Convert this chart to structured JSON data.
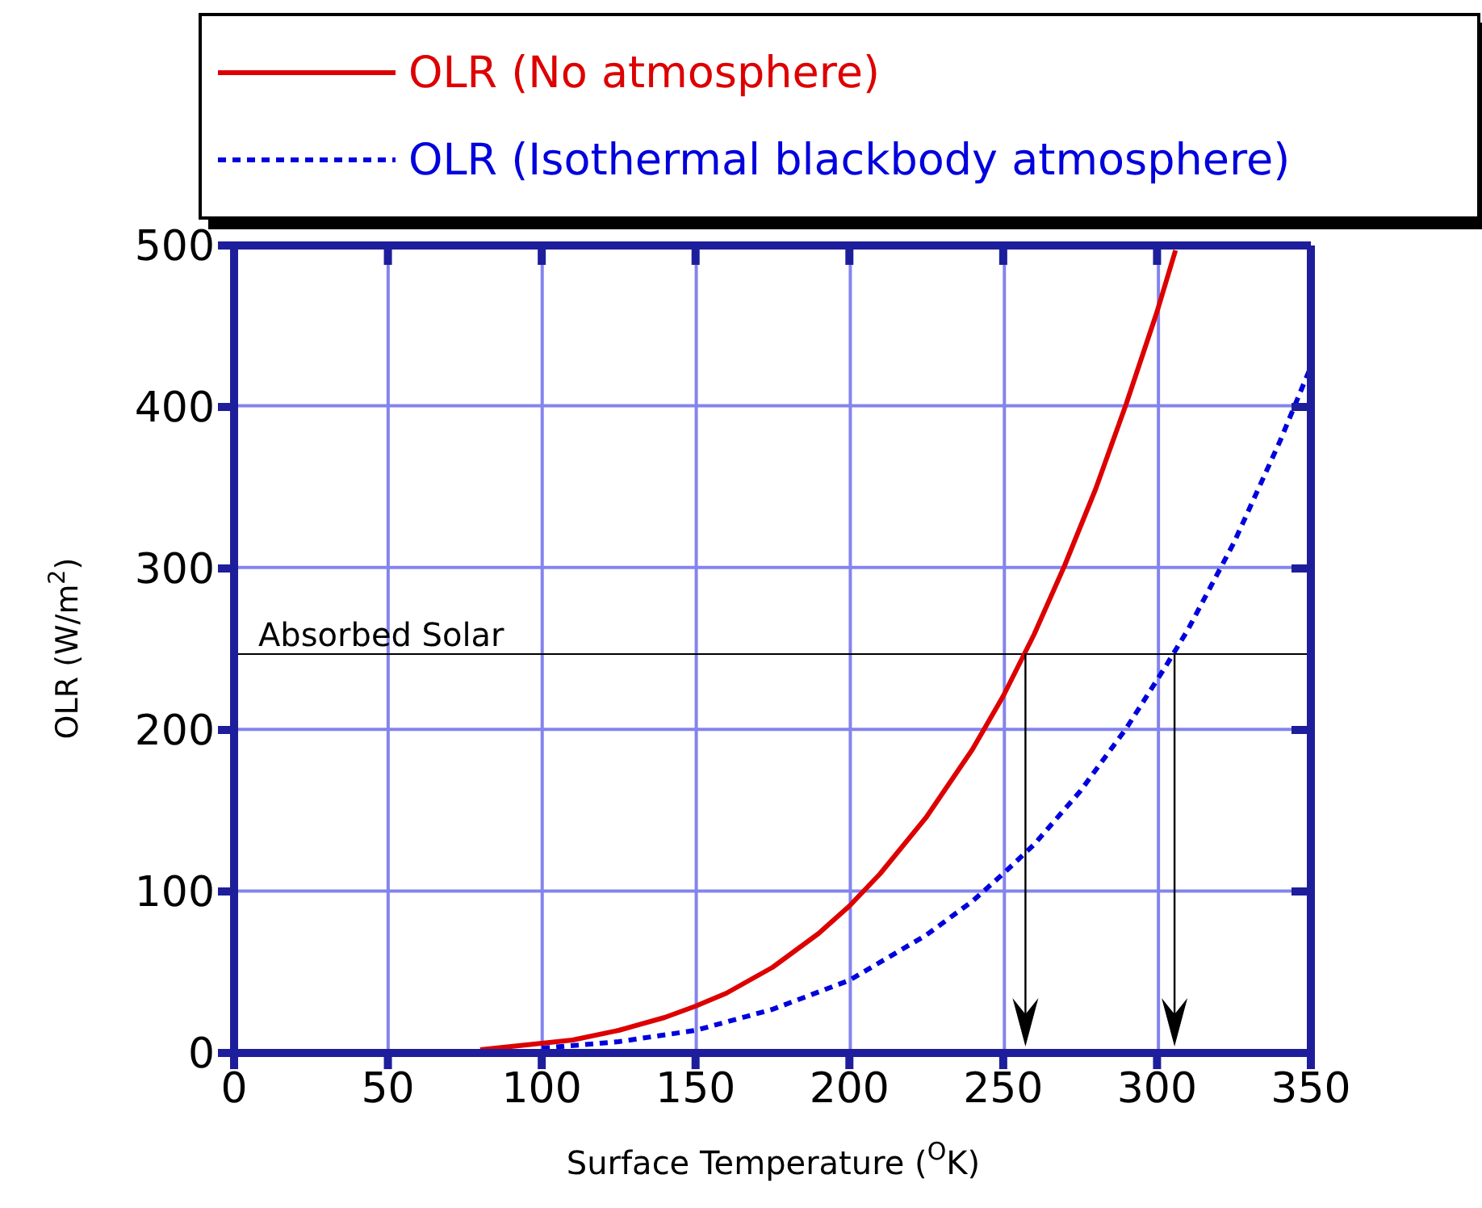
{
  "chart_data": {
    "type": "line",
    "xlabel": "Surface Temperature ($^{O}$K)",
    "ylabel": "OLR (W/m$^{2}$)",
    "xlim": [
      0,
      350
    ],
    "xticks": [
      0,
      50,
      100,
      150,
      200,
      250,
      300,
      350
    ],
    "ylim": [
      0,
      500
    ],
    "yticks": [
      0,
      100,
      200,
      300,
      400,
      500
    ],
    "grid": true,
    "legend": "top",
    "marker": "none",
    "series": [
      {
        "name": "OLR (No atmosphere)",
        "color": "#dd0000",
        "line_style": "solid",
        "x": [
          80,
          90,
          100,
          110,
          125,
          140,
          150,
          160,
          175,
          190,
          200,
          210,
          225,
          240,
          250,
          255,
          260,
          270,
          280,
          290,
          300,
          306
        ],
        "values": [
          2,
          4,
          6,
          8,
          14,
          22,
          29,
          37,
          53,
          74,
          91,
          111,
          146,
          188,
          221,
          240,
          259,
          302,
          349,
          402,
          459,
          497
        ]
      },
      {
        "name": "OLR (Isothermal blackbody atmosphere)",
        "color": "#0000dd",
        "line_style": "dashed",
        "x": [
          100,
          125,
          150,
          175,
          200,
          225,
          240,
          250,
          260,
          275,
          290,
          303,
          310,
          325,
          340,
          350
        ],
        "values": [
          3,
          7,
          14,
          27,
          45,
          73,
          94,
          111,
          129,
          162,
          201,
          240,
          262,
          316,
          379,
          425
        ]
      }
    ],
    "ref_lines": [
      {
        "axis": "y",
        "value": 247,
        "label": "Absorbed Solar",
        "color": "#000000"
      }
    ]
  }
}
